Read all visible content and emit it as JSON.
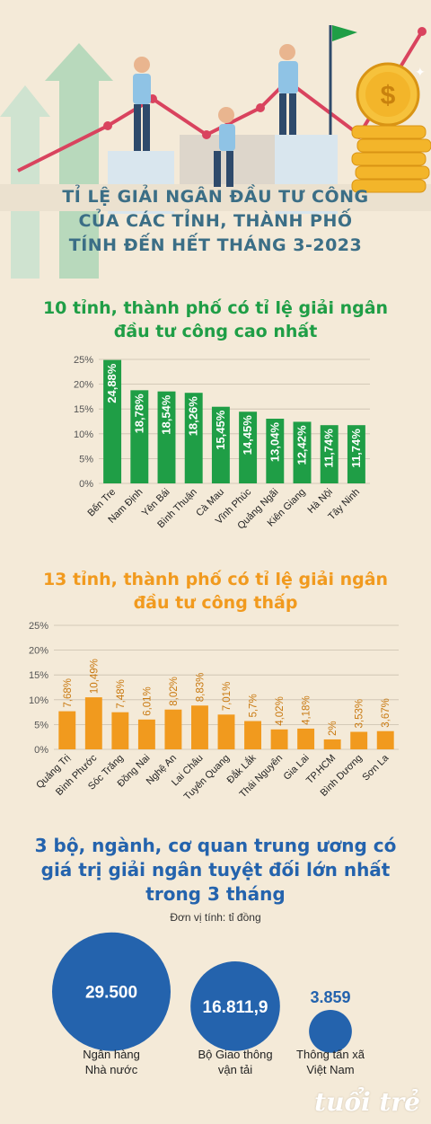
{
  "header": {
    "title_lines": [
      "TỈ LỆ GIẢI NGÂN ĐẦU TƯ CÔNG",
      "CỦA CÁC TỈNH, THÀNH PHỐ",
      "TÍNH ĐẾN HẾT THÁNG 3-2023"
    ]
  },
  "section1": {
    "title_lines": [
      "10 tỉnh, thành phố có tỉ lệ giải ngân",
      "đầu tư công cao nhất"
    ]
  },
  "section2": {
    "title_lines": [
      "13 tỉnh, thành phố có tỉ lệ giải ngân",
      "đầu tư công thấp"
    ]
  },
  "section3": {
    "title_lines": [
      "3 bộ, ngành, cơ quan trung ương có",
      "giá trị giải ngân tuyệt đối lớn nhất",
      "trong 3 tháng"
    ],
    "unit": "Đơn vị tính: tỉ đồng"
  },
  "logo_text": "tuổi trẻ",
  "colors": {
    "green": "#1f9e46",
    "orange": "#f19a1e",
    "blue": "#2463ad",
    "title_blue": "#3b6e86"
  },
  "chart_data": [
    {
      "type": "bar",
      "categories": [
        "Bến Tre",
        "Nam Định",
        "Yên Bái",
        "Bình Thuận",
        "Cà Mau",
        "Vĩnh Phúc",
        "Quảng Ngãi",
        "Kiên Giang",
        "Hà Nội",
        "Tây Ninh"
      ],
      "values": [
        24.88,
        18.78,
        18.54,
        18.26,
        15.45,
        14.45,
        13.04,
        12.42,
        11.74,
        11.74
      ],
      "data_labels": [
        "24,88%",
        "18,78%",
        "18,54%",
        "18,26%",
        "15,45%",
        "14,45%",
        "13,04%",
        "12,42%",
        "11,74%",
        "11,74%"
      ],
      "yticks": [
        "0%",
        "5%",
        "10%",
        "15%",
        "20%",
        "25%"
      ],
      "ylim": [
        0,
        25
      ],
      "grid": true,
      "color": "#1f9e46"
    },
    {
      "type": "bar",
      "categories": [
        "Quảng Trị",
        "Bình Phước",
        "Sóc Trăng",
        "Đồng Nai",
        "Nghệ An",
        "Lai Châu",
        "Tuyên Quang",
        "Đắk Lắk",
        "Thái Nguyên",
        "Gia Lai",
        "TP.HCM",
        "Bình Dương",
        "Sơn La"
      ],
      "values": [
        7.68,
        10.49,
        7.48,
        6.01,
        8.02,
        8.83,
        7.01,
        5.7,
        4.02,
        4.18,
        2,
        3.53,
        3.67
      ],
      "data_labels": [
        "7,68%",
        "10,49%",
        "7,48%",
        "6,01%",
        "8,02%",
        "8,83%",
        "7,01%",
        "5,7%",
        "4,02%",
        "4,18%",
        "2%",
        "3,53%",
        "3,67%"
      ],
      "yticks": [
        "0%",
        "5%",
        "10%",
        "15%",
        "20%",
        "25%"
      ],
      "ylim": [
        0,
        25
      ],
      "grid": true,
      "color": "#f19a1e"
    },
    {
      "type": "bubble",
      "categories": [
        "Ngân hàng Nhà nước",
        "Bộ Giao thông vận tải",
        "Thông tấn xã Việt Nam"
      ],
      "label_lines": [
        [
          "Ngân hàng",
          "Nhà nước"
        ],
        [
          "Bộ Giao thông",
          "vận tải"
        ],
        [
          "Thông tấn xã",
          "Việt Nam"
        ]
      ],
      "values": [
        29500,
        16811.9,
        3859
      ],
      "data_labels": [
        "29.500",
        "16.811,9",
        "3.859"
      ],
      "color": "#2463ad"
    }
  ]
}
